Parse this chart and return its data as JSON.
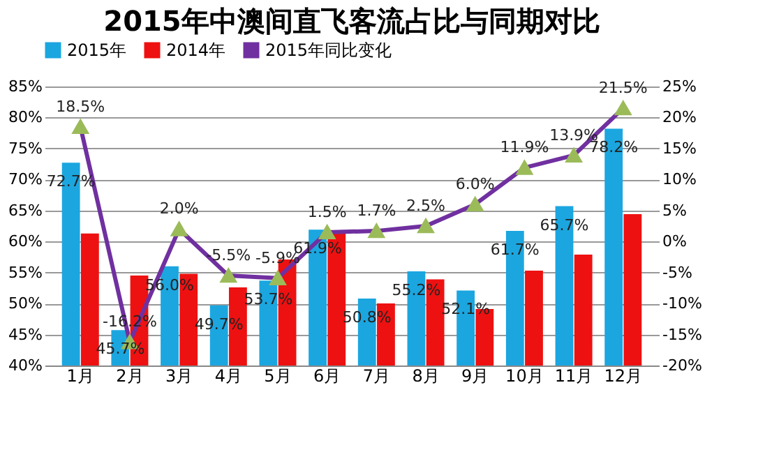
{
  "chart_data": {
    "type": "bar",
    "title": "2015年中澳间直飞客流占比与同期对比",
    "categories": [
      "1月",
      "2月",
      "3月",
      "4月",
      "5月",
      "6月",
      "7月",
      "8月",
      "9月",
      "10月",
      "11月",
      "12月"
    ],
    "series": [
      {
        "name": "2015年",
        "color": "#1ba6e0",
        "values": [
          72.7,
          45.7,
          56.0,
          49.7,
          53.7,
          61.9,
          50.8,
          55.2,
          52.1,
          61.7,
          65.7,
          78.2
        ],
        "value_labels": [
          "72.7%",
          "45.7%",
          "56.0%",
          "49.7%",
          "53.7%",
          "61.9%",
          "50.8%",
          "55.2%",
          "52.1%",
          "61.7%",
          "65.7%",
          "78.2%"
        ]
      },
      {
        "name": "2014年",
        "color": "#ee1111",
        "values": [
          61.3,
          54.5,
          54.8,
          52.6,
          57.1,
          61.4,
          50.0,
          53.9,
          49.1,
          55.3,
          57.9,
          64.4
        ]
      },
      {
        "name": "2015年同比变化",
        "type": "line",
        "axis": "y2",
        "color": "#7030a0",
        "marker": "triangle",
        "colors": [
          "#9bbb59",
          "#9bbb59",
          "#9bbb59",
          "#9bbb59",
          "#9bbb59",
          "#9bbb59",
          "#9bbb59",
          "#9bbb59",
          "#9bbb59",
          "#9bbb59",
          "#9bbb59",
          "#9bbb59"
        ],
        "values": [
          18.5,
          -16.2,
          2.0,
          -5.5,
          -5.9,
          1.5,
          1.7,
          2.5,
          6.0,
          11.9,
          13.9,
          21.5
        ],
        "value_labels": [
          "18.5%",
          "-16.2%",
          "2.0%",
          "-5.5%",
          "-5.9%",
          "1.5%",
          "1.7%",
          "2.5%",
          "6.0%",
          "11.9%",
          "13.9%",
          "21.5%"
        ]
      }
    ],
    "ylim": [
      40,
      85
    ],
    "yticks": [
      {
        "value": 40,
        "label": "40%"
      },
      {
        "value": 45,
        "label": "45%"
      },
      {
        "value": 50,
        "label": "50%"
      },
      {
        "value": 55,
        "label": "55%"
      },
      {
        "value": 60,
        "label": "60%"
      },
      {
        "value": 65,
        "label": "65%"
      },
      {
        "value": 70,
        "label": "70%"
      },
      {
        "value": 75,
        "label": "75%"
      },
      {
        "value": 80,
        "label": "80%"
      },
      {
        "value": 85,
        "label": "85%"
      }
    ],
    "y2lim": [
      -20,
      25
    ],
    "y2ticks": [
      {
        "value": -20,
        "label": "-20%"
      },
      {
        "value": -15,
        "label": "-15%"
      },
      {
        "value": -10,
        "label": "-10%"
      },
      {
        "value": -5,
        "label": "-5%"
      },
      {
        "value": 0,
        "label": "0%"
      },
      {
        "value": 5,
        "label": "5%"
      },
      {
        "value": 10,
        "label": "10%"
      },
      {
        "value": 15,
        "label": "15%"
      },
      {
        "value": 20,
        "label": "20%"
      },
      {
        "value": 25,
        "label": "25%"
      }
    ],
    "grid": "y",
    "legend": "top"
  }
}
